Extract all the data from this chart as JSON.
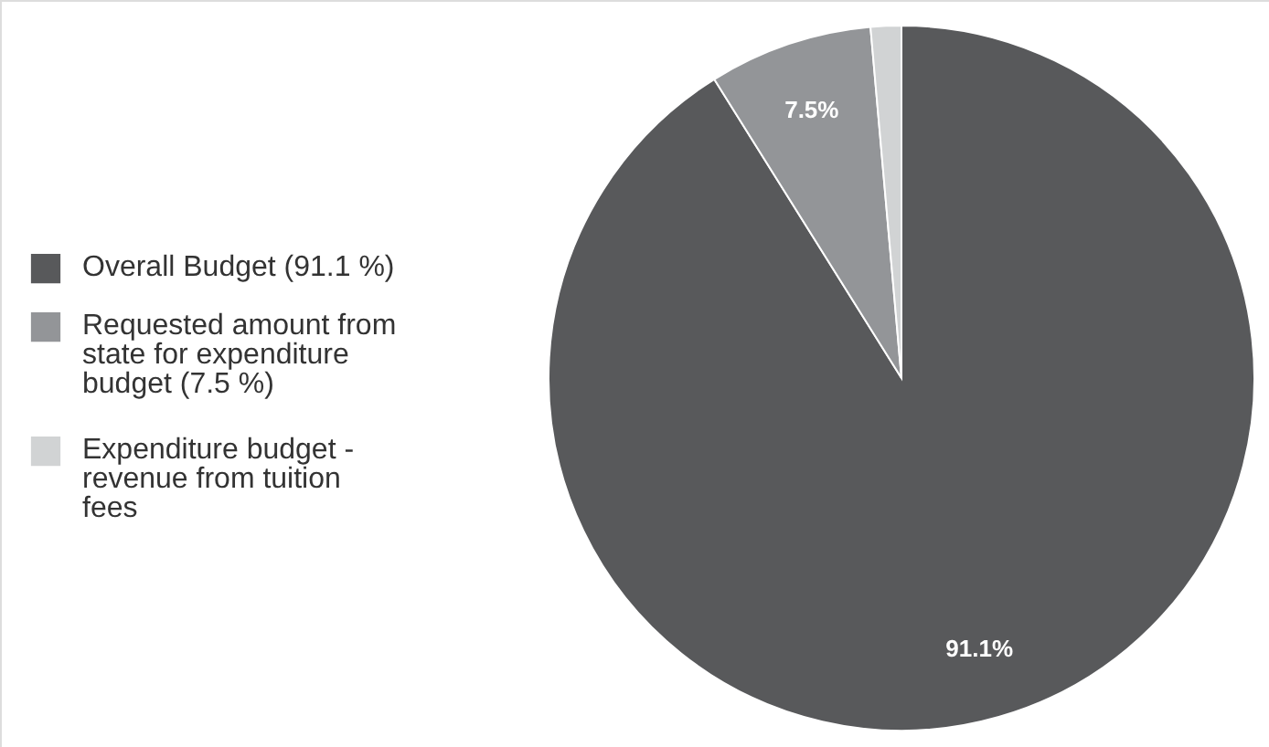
{
  "chart_data": {
    "type": "pie",
    "categories": [
      "Overall Budget (91.1 %)",
      "Requested amount from state for expenditure budget (7.5 %)",
      "Expenditure budget - revenue from tuition fees"
    ],
    "values": [
      91.1,
      7.5,
      1.4
    ],
    "colors": [
      "#58595b",
      "#939598",
      "#d1d3d4"
    ],
    "value_labels": [
      "91.1%",
      "7.5%",
      null
    ],
    "legend": "left"
  }
}
